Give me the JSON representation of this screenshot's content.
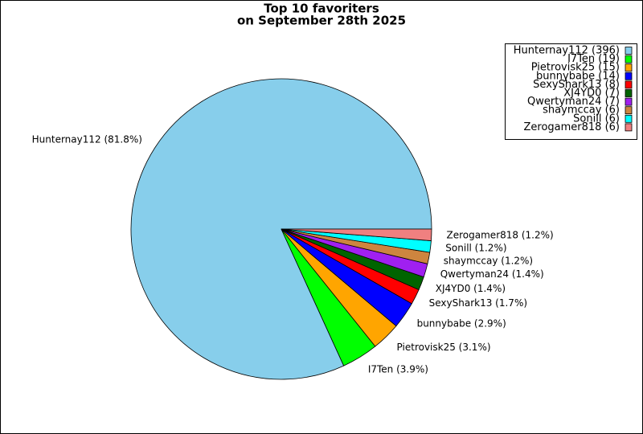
{
  "chart_data": {
    "type": "pie",
    "title": "Top 10 favoriters",
    "subtitle": "on September 28th 2025",
    "categories": [
      "Hunternay112",
      "I7Ten",
      "Pietrovisk25",
      "bunnybabe",
      "SexyShark13",
      "XJ4YD0",
      "Qwertyman24",
      "shaymccay",
      "Sonill",
      "Zerogamer818"
    ],
    "values": [
      396,
      19,
      15,
      14,
      8,
      7,
      7,
      6,
      6,
      6
    ],
    "slice_labels": [
      "Hunternay112 (81.8%)",
      "I7Ten (3.9%)",
      "Pietrovisk25 (3.1%)",
      "bunnybabe (2.9%)",
      "SexyShark13 (1.7%)",
      "XJ4YD0 (1.4%)",
      "Qwertyman24 (1.4%)",
      "shaymccay (1.2%)",
      "Sonill (1.2%)",
      "Zerogamer818 (1.2%)"
    ],
    "legend_labels": [
      "Hunternay112 (396)",
      "I7Ten (19)",
      "Pietrovisk25 (15)",
      "bunnybabe (14)",
      "SexyShark13 (8)",
      "XJ4YD0 (7)",
      "Qwertyman24 (7)",
      "shaymccay (6)",
      "Sonill (6)",
      "Zerogamer818 (6)"
    ],
    "colors": [
      "#87ceeb",
      "#00ff00",
      "#ffa500",
      "#0000ff",
      "#ff0000",
      "#006400",
      "#a020f0",
      "#cd853f",
      "#00ffff",
      "#f08080"
    ],
    "legend": "upper right"
  }
}
